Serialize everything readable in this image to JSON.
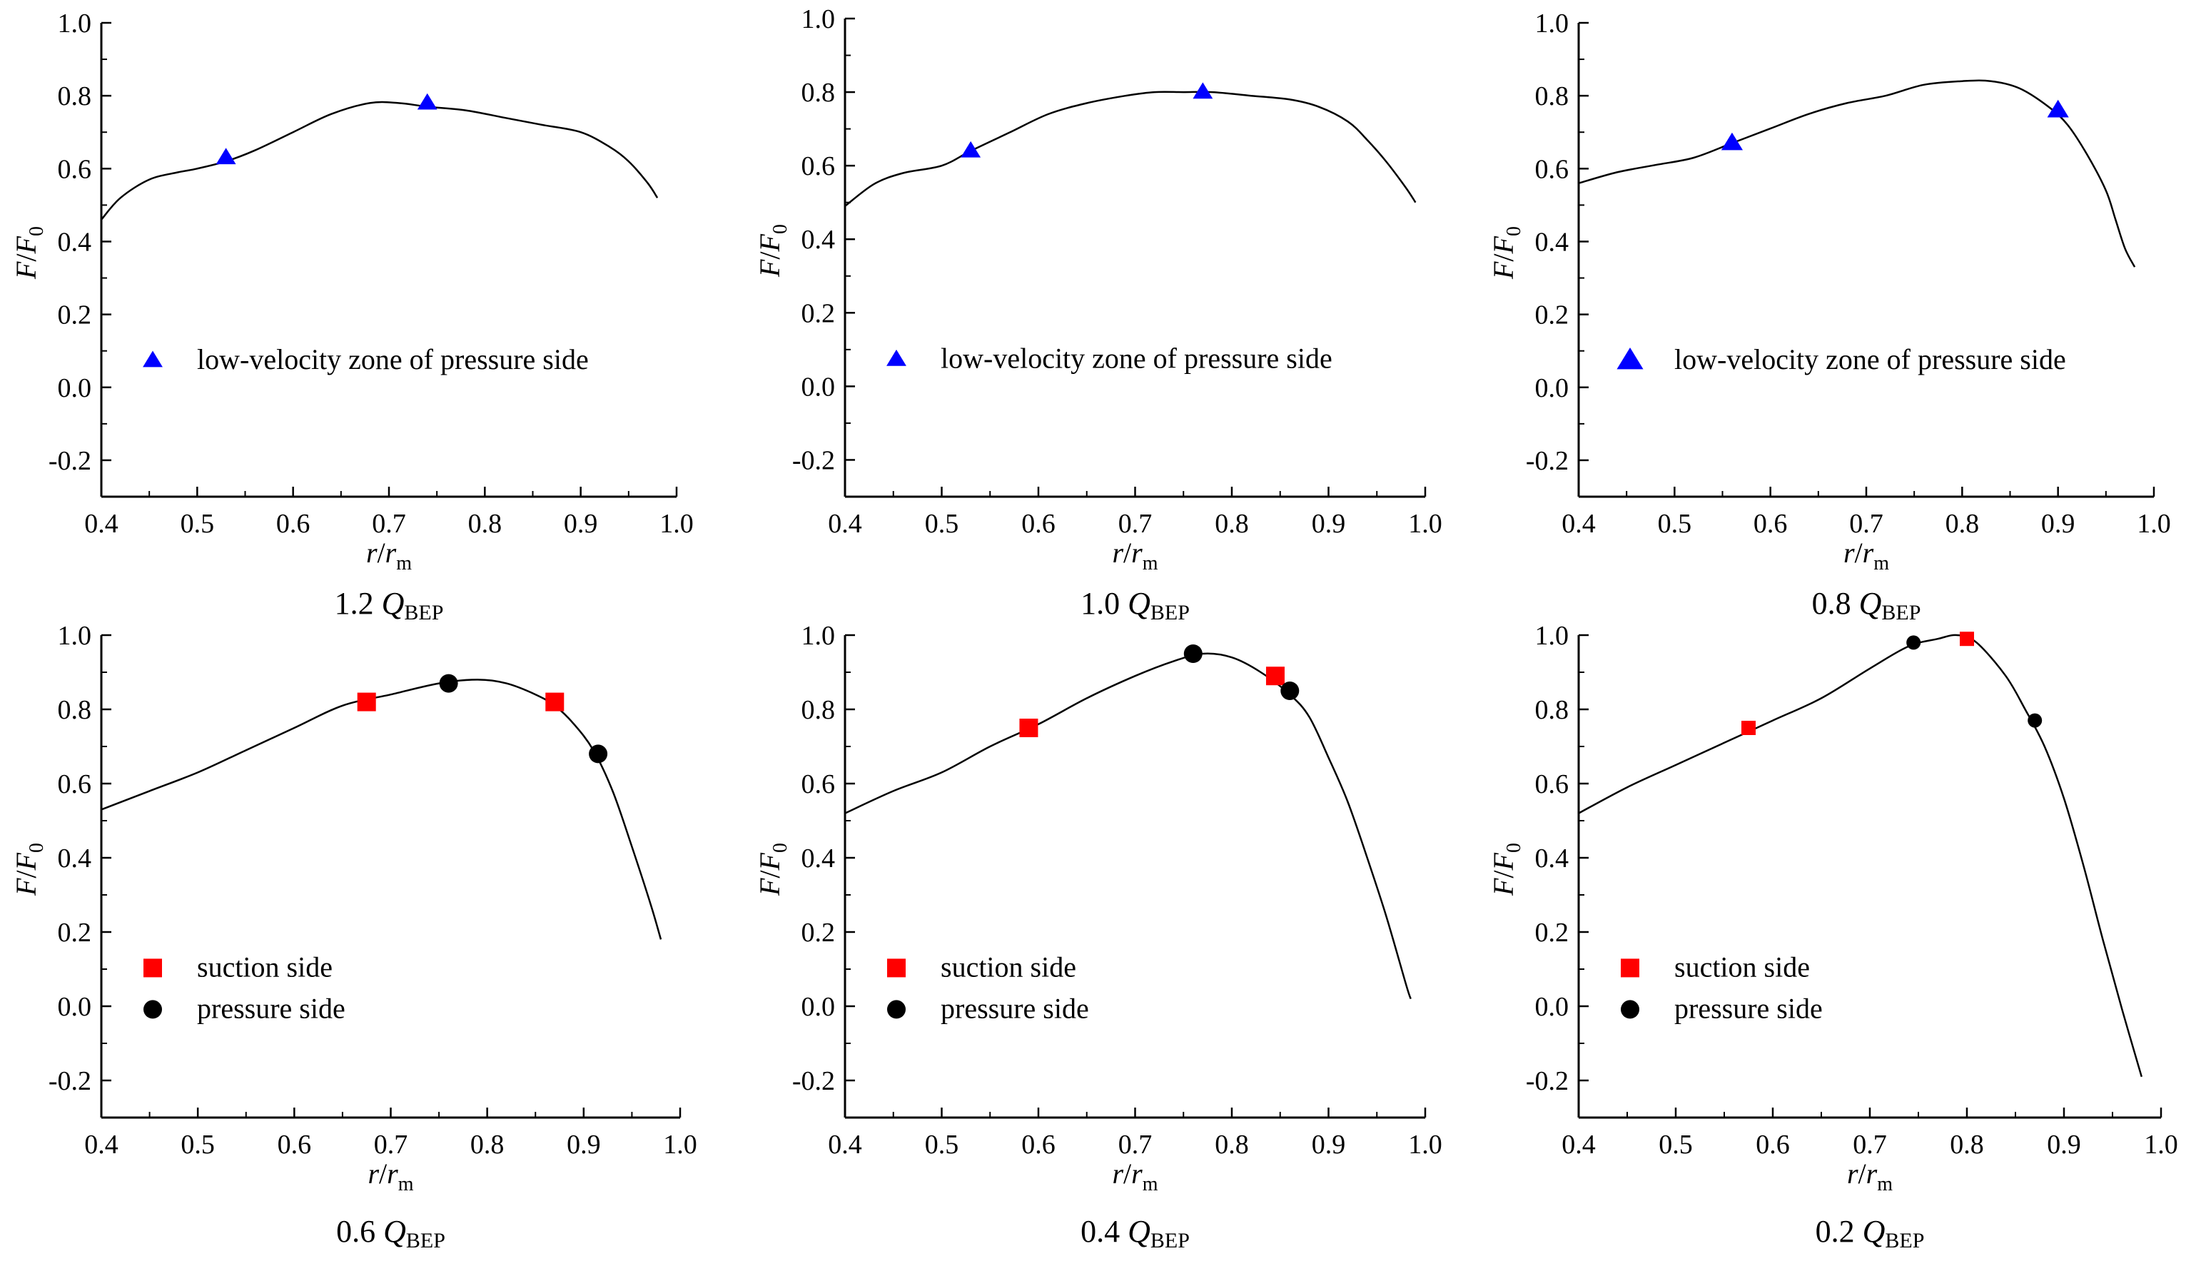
{
  "chart_data": [
    {
      "type": "line",
      "caption": {
        "prefix": "1.2",
        "q": "Q",
        "sub": "BEP"
      },
      "xlabel": {
        "r": "r",
        "slash": "/",
        "rm": "r",
        "sub": "m"
      },
      "ylabel": {
        "f": "F",
        "slash": "/",
        "f0": "F",
        "sub": "0"
      },
      "xlim": [
        0.4,
        1.0
      ],
      "ylim": [
        -0.3,
        1.0
      ],
      "xticks": [
        "0.4",
        "0.5",
        "0.6",
        "0.7",
        "0.8",
        "0.9",
        "1.0"
      ],
      "yticks": [
        "-0.2",
        "0.0",
        "0.2",
        "0.4",
        "0.6",
        "0.8",
        "1.0"
      ],
      "curve": {
        "x": [
          0.4,
          0.42,
          0.45,
          0.48,
          0.5,
          0.53,
          0.56,
          0.6,
          0.64,
          0.68,
          0.71,
          0.74,
          0.78,
          0.82,
          0.86,
          0.9,
          0.93,
          0.95,
          0.97,
          0.98
        ],
        "y": [
          0.46,
          0.52,
          0.57,
          0.59,
          0.6,
          0.62,
          0.65,
          0.7,
          0.75,
          0.78,
          0.78,
          0.77,
          0.76,
          0.74,
          0.72,
          0.7,
          0.66,
          0.62,
          0.56,
          0.52
        ]
      },
      "markers": [
        {
          "group": "low-velocity zone of pressure side",
          "shape": "triangle",
          "color": "#0000ff",
          "x": [
            0.53,
            0.74
          ],
          "y": [
            0.63,
            0.78
          ]
        }
      ],
      "legend": [
        {
          "label": "low-velocity zone of pressure side",
          "shape": "triangle",
          "color": "#0000ff"
        }
      ],
      "legend_position": "lower-left"
    },
    {
      "type": "line",
      "caption": {
        "prefix": "1.0",
        "q": "Q",
        "sub": "BEP"
      },
      "xlabel": {
        "r": "r",
        "slash": "/",
        "rm": "r",
        "sub": "m"
      },
      "ylabel": {
        "f": "F",
        "slash": "/",
        "f0": "F",
        "sub": "0"
      },
      "xlim": [
        0.4,
        1.0
      ],
      "ylim": [
        -0.3,
        1.0
      ],
      "xticks": [
        "0.4",
        "0.5",
        "0.6",
        "0.7",
        "0.8",
        "0.9",
        "1.0"
      ],
      "yticks": [
        "-0.2",
        "0.0",
        "0.2",
        "0.4",
        "0.6",
        "0.8",
        "1.0"
      ],
      "curve": {
        "x": [
          0.4,
          0.43,
          0.46,
          0.5,
          0.53,
          0.57,
          0.61,
          0.65,
          0.69,
          0.72,
          0.75,
          0.78,
          0.82,
          0.86,
          0.89,
          0.92,
          0.94,
          0.96,
          0.98,
          0.99
        ],
        "y": [
          0.49,
          0.55,
          0.58,
          0.6,
          0.64,
          0.69,
          0.74,
          0.77,
          0.79,
          0.8,
          0.8,
          0.8,
          0.79,
          0.78,
          0.76,
          0.72,
          0.67,
          0.61,
          0.54,
          0.5
        ]
      },
      "markers": [
        {
          "group": "low-velocity zone of pressure side",
          "shape": "triangle",
          "color": "#0000ff",
          "x": [
            0.53,
            0.77
          ],
          "y": [
            0.64,
            0.8
          ]
        }
      ],
      "legend": [
        {
          "label": "low-velocity zone of pressure side",
          "shape": "triangle",
          "color": "#0000ff"
        }
      ],
      "legend_position": "lower-left"
    },
    {
      "type": "line",
      "caption": {
        "prefix": "0.8",
        "q": "Q",
        "sub": "BEP"
      },
      "xlabel": {
        "r": "r",
        "slash": "/",
        "rm": "r",
        "sub": "m"
      },
      "ylabel": {
        "f": "F",
        "slash": "/",
        "f0": "F",
        "sub": "0"
      },
      "xlim": [
        0.4,
        1.0
      ],
      "ylim": [
        -0.3,
        1.0
      ],
      "xticks": [
        "0.4",
        "0.5",
        "0.6",
        "0.7",
        "0.8",
        "0.9",
        "1.0"
      ],
      "yticks": [
        "-0.2",
        "0.0",
        "0.2",
        "0.4",
        "0.6",
        "0.8",
        "1.0"
      ],
      "curve": {
        "x": [
          0.4,
          0.44,
          0.48,
          0.52,
          0.56,
          0.6,
          0.64,
          0.68,
          0.72,
          0.76,
          0.8,
          0.83,
          0.86,
          0.89,
          0.91,
          0.93,
          0.95,
          0.96,
          0.97,
          0.98
        ],
        "y": [
          0.56,
          0.59,
          0.61,
          0.63,
          0.67,
          0.71,
          0.75,
          0.78,
          0.8,
          0.83,
          0.84,
          0.84,
          0.82,
          0.77,
          0.72,
          0.64,
          0.54,
          0.46,
          0.38,
          0.33
        ]
      },
      "markers": [
        {
          "group": "low-velocity zone of pressure side",
          "shape": "triangle",
          "color": "#0000ff",
          "x": [
            0.56,
            0.9
          ],
          "y": [
            0.67,
            0.76
          ]
        }
      ],
      "legend": [
        {
          "label": "low-velocity zone of pressure side",
          "shape": "triangle",
          "color": "#0000ff"
        }
      ],
      "legend_position": "lower-left"
    },
    {
      "type": "line",
      "caption": {
        "prefix": "0.6",
        "q": "Q",
        "sub": "BEP"
      },
      "xlabel": {
        "r": "r",
        "slash": "/",
        "rm": "r",
        "sub": "m"
      },
      "ylabel": {
        "f": "F",
        "slash": "/",
        "f0": "F",
        "sub": "0"
      },
      "xlim": [
        0.4,
        1.0
      ],
      "ylim": [
        -0.3,
        1.0
      ],
      "xticks": [
        "0.4",
        "0.5",
        "0.6",
        "0.7",
        "0.8",
        "0.9",
        "1.0"
      ],
      "yticks": [
        "-0.2",
        "0.0",
        "0.2",
        "0.4",
        "0.6",
        "0.8",
        "1.0"
      ],
      "curve": {
        "x": [
          0.4,
          0.45,
          0.5,
          0.55,
          0.6,
          0.65,
          0.7,
          0.75,
          0.79,
          0.82,
          0.85,
          0.87,
          0.89,
          0.91,
          0.93,
          0.95,
          0.97,
          0.98
        ],
        "y": [
          0.53,
          0.58,
          0.63,
          0.69,
          0.75,
          0.81,
          0.84,
          0.87,
          0.88,
          0.87,
          0.84,
          0.81,
          0.76,
          0.69,
          0.58,
          0.43,
          0.27,
          0.18
        ]
      },
      "markers": [
        {
          "group": "suction side",
          "shape": "square",
          "color": "#ff0000",
          "x": [
            0.675,
            0.87
          ],
          "y": [
            0.82,
            0.82
          ]
        },
        {
          "group": "pressure side",
          "shape": "circle",
          "color": "#000000",
          "x": [
            0.76,
            0.915
          ],
          "y": [
            0.87,
            0.68
          ]
        }
      ],
      "legend": [
        {
          "label": "suction side",
          "shape": "square",
          "color": "#ff0000"
        },
        {
          "label": "pressure side",
          "shape": "circle",
          "color": "#000000"
        }
      ],
      "legend_position": "lower-left"
    },
    {
      "type": "line",
      "caption": {
        "prefix": "0.4",
        "q": "Q",
        "sub": "BEP"
      },
      "xlabel": {
        "r": "r",
        "slash": "/",
        "rm": "r",
        "sub": "m"
      },
      "ylabel": {
        "f": "F",
        "slash": "/",
        "f0": "F",
        "sub": "0"
      },
      "xlim": [
        0.4,
        1.0
      ],
      "ylim": [
        -0.3,
        1.0
      ],
      "xticks": [
        "0.4",
        "0.5",
        "0.6",
        "0.7",
        "0.8",
        "0.9",
        "1.0"
      ],
      "yticks": [
        "-0.2",
        "0.0",
        "0.2",
        "0.4",
        "0.6",
        "0.8",
        "1.0"
      ],
      "curve": {
        "x": [
          0.4,
          0.45,
          0.5,
          0.55,
          0.6,
          0.65,
          0.7,
          0.74,
          0.77,
          0.8,
          0.83,
          0.86,
          0.88,
          0.9,
          0.92,
          0.94,
          0.96,
          0.98,
          0.985
        ],
        "y": [
          0.52,
          0.58,
          0.63,
          0.7,
          0.76,
          0.83,
          0.89,
          0.93,
          0.95,
          0.94,
          0.9,
          0.84,
          0.78,
          0.67,
          0.55,
          0.4,
          0.24,
          0.06,
          0.02
        ]
      },
      "markers": [
        {
          "group": "suction side",
          "shape": "square",
          "color": "#ff0000",
          "x": [
            0.59,
            0.845
          ],
          "y": [
            0.75,
            0.89
          ]
        },
        {
          "group": "pressure side",
          "shape": "circle",
          "color": "#000000",
          "x": [
            0.76,
            0.86
          ],
          "y": [
            0.95,
            0.85
          ]
        }
      ],
      "legend": [
        {
          "label": "suction side",
          "shape": "square",
          "color": "#ff0000"
        },
        {
          "label": "pressure side",
          "shape": "circle",
          "color": "#000000"
        }
      ],
      "legend_position": "lower-left"
    },
    {
      "type": "line",
      "caption": {
        "prefix": "0.2",
        "q": "Q",
        "sub": "BEP"
      },
      "xlabel": {
        "r": "r",
        "slash": "/",
        "rm": "r",
        "sub": "m"
      },
      "ylabel": {
        "f": "F",
        "slash": "/",
        "f0": "F",
        "sub": "0"
      },
      "xlim": [
        0.4,
        1.0
      ],
      "ylim": [
        -0.3,
        1.0
      ],
      "xticks": [
        "0.4",
        "0.5",
        "0.6",
        "0.7",
        "0.8",
        "0.9",
        "1.0"
      ],
      "yticks": [
        "-0.2",
        "0.0",
        "0.2",
        "0.4",
        "0.6",
        "0.8",
        "1.0"
      ],
      "curve": {
        "x": [
          0.4,
          0.45,
          0.5,
          0.55,
          0.6,
          0.65,
          0.7,
          0.74,
          0.77,
          0.79,
          0.81,
          0.84,
          0.86,
          0.88,
          0.9,
          0.92,
          0.94,
          0.96,
          0.98
        ],
        "y": [
          0.52,
          0.59,
          0.65,
          0.71,
          0.77,
          0.83,
          0.91,
          0.97,
          0.99,
          1.0,
          0.98,
          0.89,
          0.8,
          0.7,
          0.56,
          0.38,
          0.18,
          -0.01,
          -0.19
        ]
      },
      "markers": [
        {
          "group": "suction side",
          "shape": "square",
          "color": "#ff0000",
          "x": [
            0.575,
            0.8
          ],
          "y": [
            0.75,
            0.99
          ]
        },
        {
          "group": "pressure side",
          "shape": "circle",
          "color": "#000000",
          "x": [
            0.745,
            0.87
          ],
          "y": [
            0.98,
            0.77
          ]
        }
      ],
      "legend": [
        {
          "label": "suction side",
          "shape": "square",
          "color": "#ff0000"
        },
        {
          "label": "pressure side",
          "shape": "circle",
          "color": "#000000"
        }
      ],
      "legend_position": "lower-left"
    }
  ]
}
